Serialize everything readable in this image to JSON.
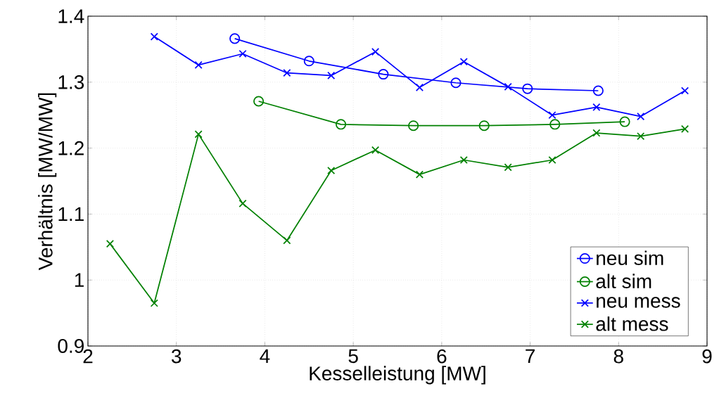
{
  "chart_data": {
    "type": "line",
    "xlabel": "Kesselleistung [MW]",
    "ylabel": "Verhältnis [MW/MW]",
    "xlim": [
      2,
      9
    ],
    "xticks": [
      2,
      3,
      4,
      5,
      6,
      7,
      8,
      9
    ],
    "ylim": [
      0.9,
      1.4
    ],
    "yticks": [
      0.9,
      1,
      1.1,
      1.2,
      1.3,
      1.4
    ],
    "grid": true,
    "legend": "bottom right",
    "series": [
      {
        "name": "neu sim",
        "color": "#0000ff",
        "marker": "circle",
        "x": [
          3.66,
          4.5,
          5.34,
          6.16,
          6.97,
          7.77
        ],
        "values": [
          1.366,
          1.332,
          1.312,
          1.299,
          1.29,
          1.287
        ]
      },
      {
        "name": "alt sim",
        "color": "#008000",
        "marker": "circle",
        "x": [
          3.93,
          4.86,
          5.68,
          6.48,
          7.28,
          8.07
        ],
        "values": [
          1.271,
          1.236,
          1.234,
          1.234,
          1.236,
          1.24
        ]
      },
      {
        "name": "neu mess",
        "color": "#0000ff",
        "marker": "cross",
        "x": [
          2.75,
          3.25,
          3.75,
          4.25,
          4.75,
          5.25,
          5.75,
          6.25,
          6.75,
          7.25,
          7.75,
          8.25,
          8.75
        ],
        "values": [
          1.369,
          1.326,
          1.343,
          1.314,
          1.31,
          1.346,
          1.292,
          1.331,
          1.293,
          1.25,
          1.262,
          1.248,
          1.287
        ]
      },
      {
        "name": "alt mess",
        "color": "#008000",
        "marker": "cross",
        "x": [
          2.25,
          2.75,
          3.25,
          3.75,
          4.25,
          4.75,
          5.25,
          5.75,
          6.25,
          6.75,
          7.25,
          7.75,
          8.25,
          8.75
        ],
        "values": [
          1.055,
          0.965,
          1.221,
          1.116,
          1.06,
          1.166,
          1.197,
          1.16,
          1.182,
          1.171,
          1.182,
          1.223,
          1.218,
          1.229
        ]
      }
    ]
  }
}
